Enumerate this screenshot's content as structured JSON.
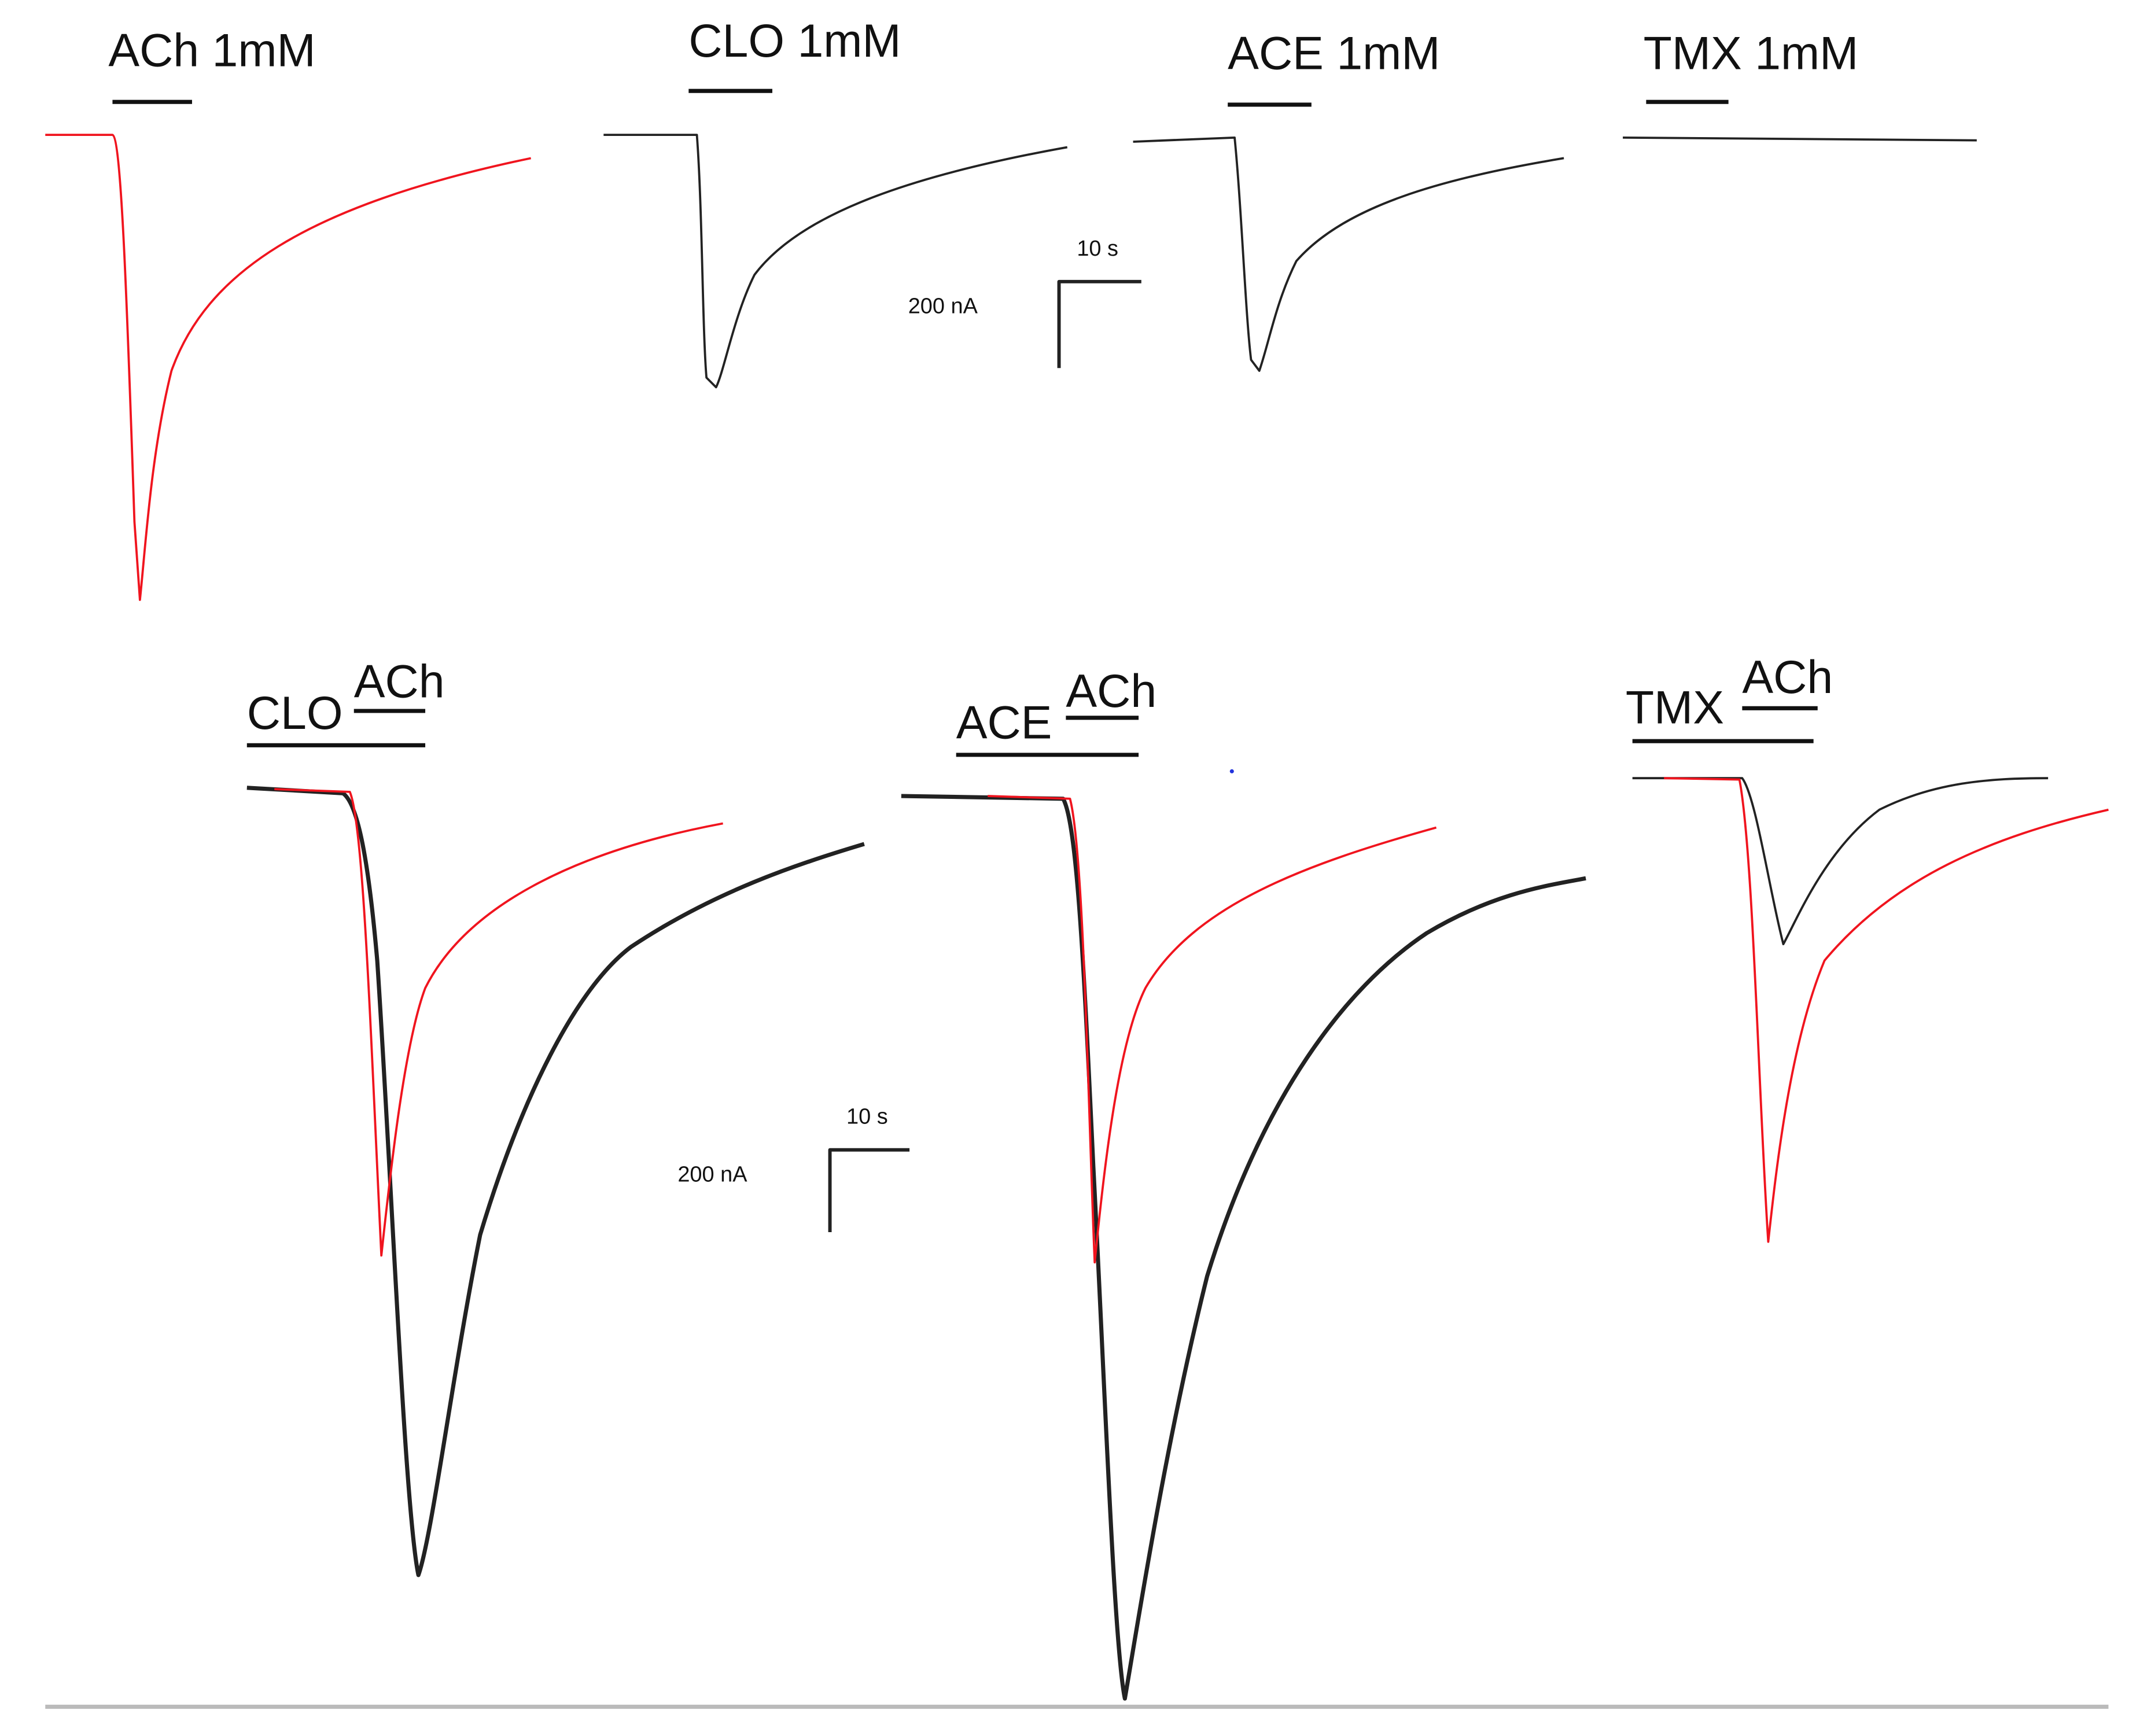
{
  "top_panels": [
    {
      "label": "ACh 1mM"
    },
    {
      "label": "CLO 1mM"
    },
    {
      "label": "ACE 1mM"
    },
    {
      "label": "TMX 1mM"
    }
  ],
  "bottom_panels": [
    {
      "first": "CLO",
      "second": "ACh"
    },
    {
      "first": "ACE",
      "second": "ACh"
    },
    {
      "first": "TMX",
      "second": "ACh"
    }
  ],
  "scale_bars": [
    {
      "time": "10 s",
      "current": "200 nA"
    },
    {
      "time": "10 s",
      "current": "200 nA"
    }
  ]
}
